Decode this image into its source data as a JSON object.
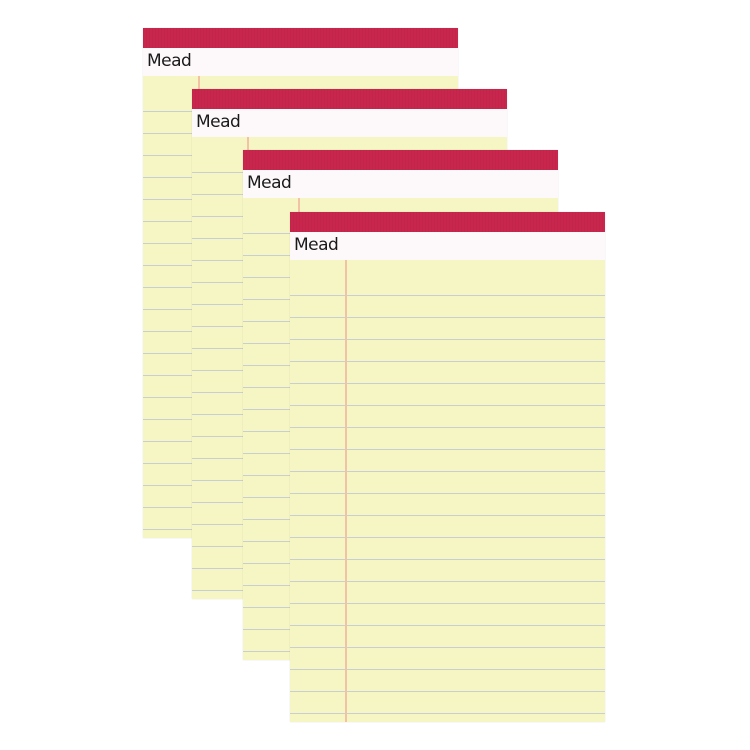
{
  "brand": "Mead",
  "colors": {
    "band": "#c9264d",
    "paper": "#f6f6c4",
    "rule": "#c9cfd0",
    "margin": "#f2c2a6"
  },
  "pads": [
    {
      "logo": "Mead"
    },
    {
      "logo": "Mead"
    },
    {
      "logo": "Mead"
    },
    {
      "logo": "Mead"
    }
  ]
}
